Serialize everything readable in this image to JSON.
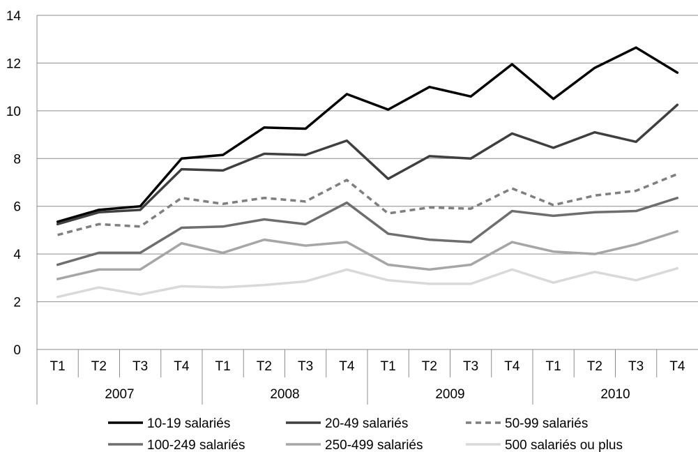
{
  "chart_data": {
    "type": "line",
    "title": "",
    "xlabel": "",
    "ylabel": "",
    "ylim": [
      0,
      14
    ],
    "yticks": [
      0,
      2,
      4,
      6,
      8,
      10,
      12,
      14
    ],
    "grid": true,
    "legend_position": "bottom",
    "categories": [
      "T1",
      "T2",
      "T3",
      "T4",
      "T1",
      "T2",
      "T3",
      "T4",
      "T1",
      "T2",
      "T3",
      "T4",
      "T1",
      "T2",
      "T3",
      "T4"
    ],
    "years": [
      "2007",
      "2008",
      "2009",
      "2010"
    ],
    "series": [
      {
        "name": "10-19 salariés",
        "color": "#000000",
        "dashed": false,
        "values": [
          5.35,
          5.85,
          6.0,
          8.0,
          8.15,
          9.3,
          9.25,
          10.7,
          10.05,
          11.0,
          10.6,
          11.95,
          10.5,
          11.8,
          12.65,
          11.6
        ]
      },
      {
        "name": "20-49 salariés",
        "color": "#3f3f3f",
        "dashed": false,
        "values": [
          5.25,
          5.75,
          5.85,
          7.55,
          7.5,
          8.2,
          8.15,
          8.75,
          7.15,
          8.1,
          8.0,
          9.05,
          8.45,
          9.1,
          8.7,
          10.25
        ]
      },
      {
        "name": "50-99 salariés",
        "color": "#7f7f7f",
        "dashed": true,
        "values": [
          4.8,
          5.25,
          5.15,
          6.35,
          6.1,
          6.35,
          6.2,
          7.1,
          5.7,
          5.95,
          5.9,
          6.75,
          6.05,
          6.45,
          6.65,
          7.35
        ]
      },
      {
        "name": "100-249 salariés",
        "color": "#6e6e6e",
        "dashed": false,
        "values": [
          3.55,
          4.05,
          4.05,
          5.1,
          5.15,
          5.45,
          5.25,
          6.15,
          4.85,
          4.6,
          4.5,
          5.8,
          5.6,
          5.75,
          5.8,
          6.35
        ]
      },
      {
        "name": "250-499 salariés",
        "color": "#a6a6a6",
        "dashed": false,
        "values": [
          2.95,
          3.35,
          3.35,
          4.45,
          4.05,
          4.6,
          4.35,
          4.5,
          3.55,
          3.35,
          3.55,
          4.5,
          4.1,
          4.0,
          4.4,
          4.95
        ]
      },
      {
        "name": "500 salariés ou plus",
        "color": "#d9d9d9",
        "dashed": false,
        "values": [
          2.2,
          2.6,
          2.3,
          2.65,
          2.6,
          2.7,
          2.85,
          3.35,
          2.9,
          2.75,
          2.75,
          3.35,
          2.8,
          3.25,
          2.9,
          3.4
        ]
      }
    ]
  }
}
